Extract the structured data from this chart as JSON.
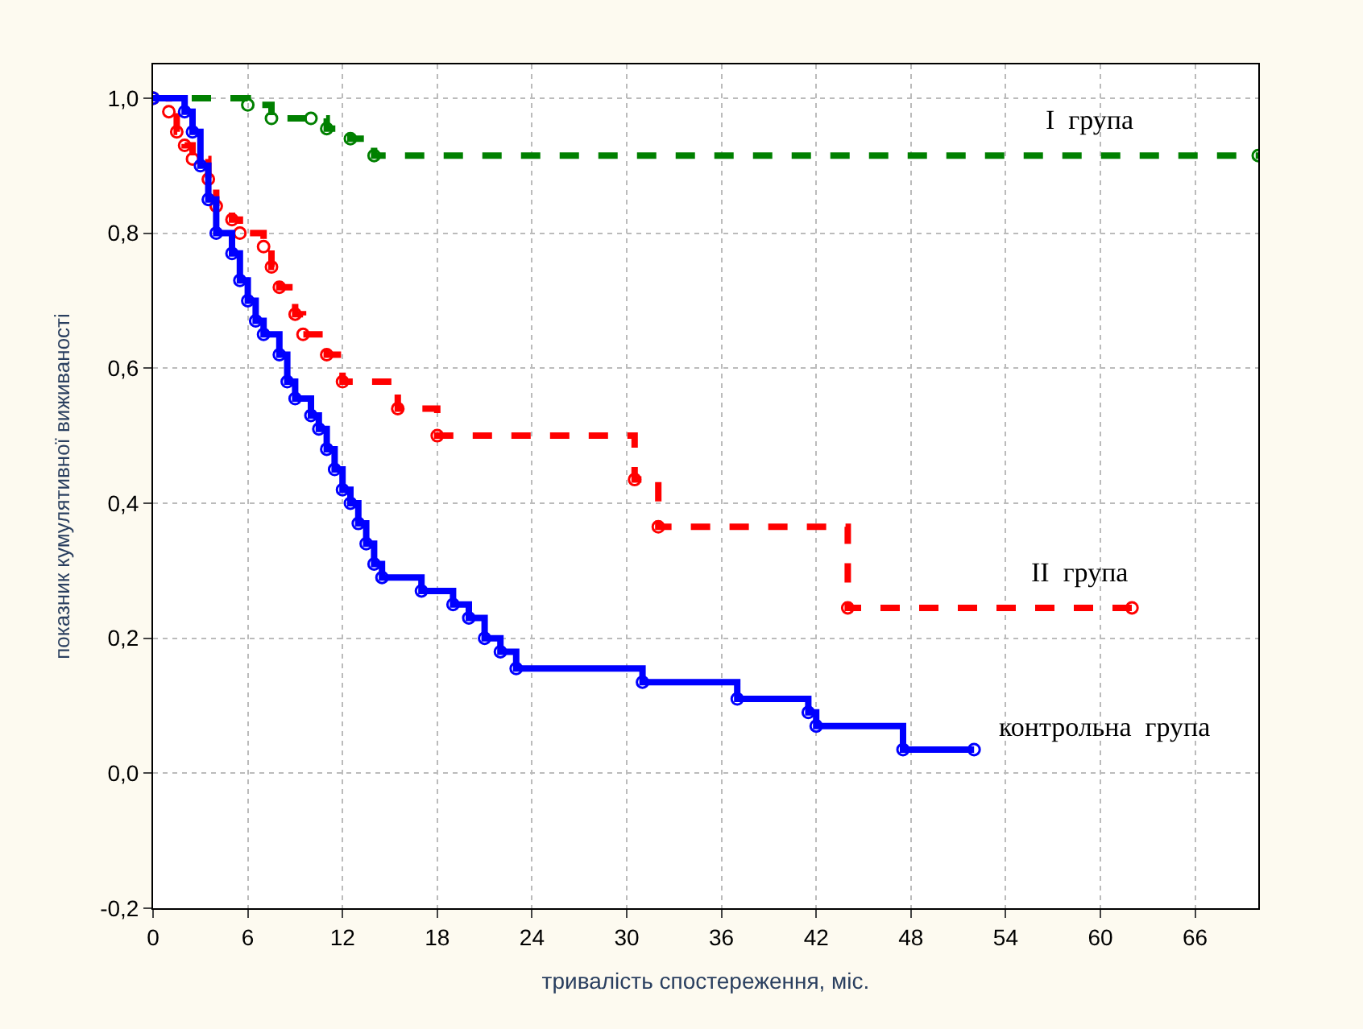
{
  "chart_data": {
    "type": "step",
    "xlabel": "тривалість спостереження, міс.",
    "ylabel": "показник кумулятивної виживаності",
    "xlim": [
      0,
      70
    ],
    "xticks": [
      0,
      6,
      12,
      18,
      24,
      30,
      36,
      42,
      48,
      54,
      60,
      66
    ],
    "ylim": [
      -0.2,
      1.05
    ],
    "yticks": [
      {
        "value": -0.2,
        "label": "-0,2"
      },
      {
        "value": 0,
        "label": "0,0"
      },
      {
        "value": 0.2,
        "label": "0,2"
      },
      {
        "value": 0.4,
        "label": "0,4"
      },
      {
        "value": 0.6,
        "label": "0,6"
      },
      {
        "value": 0.8,
        "label": "0,8"
      },
      {
        "value": 1.0,
        "label": "1,0"
      }
    ],
    "grid": true,
    "legend": false,
    "marker": "circle",
    "series": [
      {
        "name": "I  група",
        "color": "#008000",
        "line_style": "dashed",
        "x": [
          0,
          6,
          7.5,
          10,
          11,
          12.5,
          14,
          70
        ],
        "values": [
          1.0,
          0.99,
          0.97,
          0.97,
          0.955,
          0.94,
          0.915,
          0.915
        ]
      },
      {
        "name": "II  група",
        "color": "#ff0000",
        "line_style": "dashed",
        "x": [
          0,
          1,
          1.5,
          2,
          2.5,
          3.5,
          4,
          5,
          5.5,
          7,
          7.5,
          8,
          9,
          9.5,
          11,
          12,
          15.5,
          18,
          30.5,
          32,
          44,
          62
        ],
        "values": [
          1.0,
          0.98,
          0.95,
          0.93,
          0.91,
          0.88,
          0.84,
          0.82,
          0.8,
          0.78,
          0.75,
          0.72,
          0.68,
          0.65,
          0.62,
          0.58,
          0.54,
          0.5,
          0.435,
          0.365,
          0.245,
          0.245
        ]
      },
      {
        "name": "контрольна  група",
        "color": "#0000ff",
        "line_style": "solid",
        "x": [
          0,
          2,
          2.5,
          3,
          3.5,
          4,
          5,
          5.5,
          6,
          6.5,
          7,
          8,
          8.5,
          9,
          10,
          10.5,
          11,
          11.5,
          12,
          12.5,
          13,
          13.5,
          14,
          14.5,
          17,
          19,
          20,
          21,
          22,
          23,
          31,
          37,
          41.5,
          42,
          47.5,
          52
        ],
        "values": [
          1.0,
          0.98,
          0.95,
          0.9,
          0.85,
          0.8,
          0.77,
          0.73,
          0.7,
          0.67,
          0.65,
          0.62,
          0.58,
          0.555,
          0.53,
          0.51,
          0.48,
          0.45,
          0.42,
          0.4,
          0.37,
          0.34,
          0.31,
          0.29,
          0.27,
          0.25,
          0.23,
          0.2,
          0.18,
          0.155,
          0.135,
          0.11,
          0.09,
          0.07,
          0.035,
          0.035
        ]
      }
    ]
  }
}
